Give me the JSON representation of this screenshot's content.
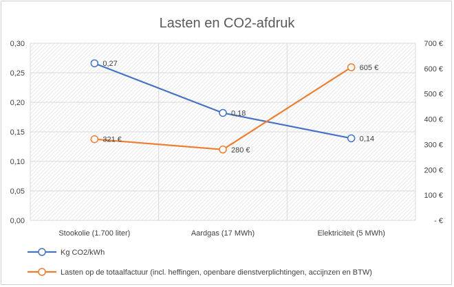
{
  "chart_data": {
    "type": "line",
    "title": "Lasten en CO2-afdruk",
    "categories": [
      "Stookolie (1.700 liter)",
      "Aardgas (17 MWh)",
      "Elektriciteit (5 MWh)"
    ],
    "y_left": {
      "min": 0,
      "max": 0.3,
      "step": 0.05,
      "tick_labels": [
        "0,00",
        "0,05",
        "0,10",
        "0,15",
        "0,20",
        "0,25",
        "0,30"
      ]
    },
    "y_right": {
      "min": 0,
      "max": 700,
      "step": 100,
      "tick_labels": [
        "-   €",
        "100 €",
        "200 €",
        "300 €",
        "400 €",
        "500 €",
        "600 €",
        "700 €"
      ]
    },
    "grid": true,
    "legend_position": "bottom",
    "series": [
      {
        "name": "Kg CO2/kWh",
        "axis": "left",
        "color": "#4472c4",
        "values": [
          0.266,
          0.182,
          0.139
        ],
        "labels": [
          "0,27",
          "0,18",
          "0,14"
        ]
      },
      {
        "name": "Lasten op de totaalfactuur (incl. heffingen, openbare dienstverplichtingen, accijnzen en BTW)",
        "axis": "right",
        "color": "#ed7d31",
        "values": [
          321,
          280,
          605
        ],
        "labels": [
          "321 €",
          "280 €",
          "605 €"
        ]
      }
    ]
  }
}
